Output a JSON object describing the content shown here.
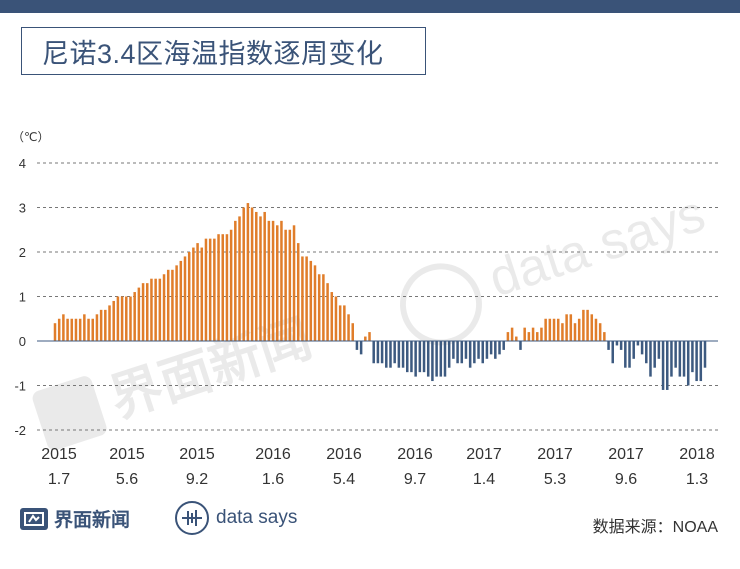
{
  "title": "尼诺3.4区海温指数逐周变化",
  "unit": "（℃）",
  "source_label": "数据来源：NOAA",
  "logos": {
    "jiemian": "界面新闻",
    "datasays": "data says"
  },
  "colors": {
    "positive": "#e07d2a",
    "negative": "#3d5a80",
    "header": "#3a5378"
  },
  "chart_data": {
    "type": "bar",
    "title": "尼诺3.4区海温指数逐周变化",
    "ylabel": "（℃）",
    "ylim": [
      -2,
      4
    ],
    "yticks": [
      -2,
      -1,
      0,
      1,
      2,
      3,
      4
    ],
    "grid": true,
    "x_tick_labels": [
      {
        "year": "2015",
        "date": "1.7"
      },
      {
        "year": "2015",
        "date": "5.6"
      },
      {
        "year": "2015",
        "date": "9.2"
      },
      {
        "year": "2016",
        "date": "1.6"
      },
      {
        "year": "2016",
        "date": "5.4"
      },
      {
        "year": "2016",
        "date": "9.7"
      },
      {
        "year": "2017",
        "date": "1.4"
      },
      {
        "year": "2017",
        "date": "5.3"
      },
      {
        "year": "2017",
        "date": "9.6"
      },
      {
        "year": "2018",
        "date": "1.3"
      }
    ],
    "values": [
      0.4,
      0.5,
      0.6,
      0.5,
      0.5,
      0.5,
      0.5,
      0.6,
      0.5,
      0.5,
      0.6,
      0.7,
      0.7,
      0.8,
      0.9,
      1.0,
      1.0,
      1.0,
      1.0,
      1.1,
      1.2,
      1.3,
      1.3,
      1.4,
      1.4,
      1.4,
      1.5,
      1.6,
      1.6,
      1.7,
      1.8,
      1.9,
      2.0,
      2.1,
      2.2,
      2.1,
      2.3,
      2.3,
      2.3,
      2.4,
      2.4,
      2.4,
      2.5,
      2.7,
      2.8,
      3.0,
      3.1,
      3.0,
      2.9,
      2.8,
      2.9,
      2.7,
      2.7,
      2.6,
      2.7,
      2.5,
      2.5,
      2.6,
      2.2,
      1.9,
      1.9,
      1.8,
      1.7,
      1.5,
      1.5,
      1.3,
      1.1,
      1.0,
      0.8,
      0.8,
      0.6,
      0.4,
      -0.2,
      -0.3,
      0.1,
      0.2,
      -0.5,
      -0.5,
      -0.5,
      -0.6,
      -0.6,
      -0.5,
      -0.6,
      -0.6,
      -0.7,
      -0.7,
      -0.8,
      -0.7,
      -0.7,
      -0.8,
      -0.9,
      -0.8,
      -0.8,
      -0.8,
      -0.6,
      -0.4,
      -0.5,
      -0.5,
      -0.4,
      -0.6,
      -0.5,
      -0.4,
      -0.5,
      -0.4,
      -0.3,
      -0.4,
      -0.3,
      -0.2,
      0.2,
      0.3,
      0.1,
      -0.2,
      0.3,
      0.2,
      0.3,
      0.2,
      0.3,
      0.5,
      0.5,
      0.5,
      0.5,
      0.4,
      0.6,
      0.6,
      0.4,
      0.5,
      0.7,
      0.7,
      0.6,
      0.5,
      0.4,
      0.2,
      -0.2,
      -0.5,
      -0.1,
      -0.2,
      -0.6,
      -0.6,
      -0.4,
      -0.1,
      -0.3,
      -0.5,
      -0.8,
      -0.6,
      -0.4,
      -1.1,
      -1.1,
      -0.8,
      -0.6,
      -0.8,
      -0.8,
      -1.0,
      -0.7,
      -0.9,
      -0.9,
      -0.6
    ]
  }
}
